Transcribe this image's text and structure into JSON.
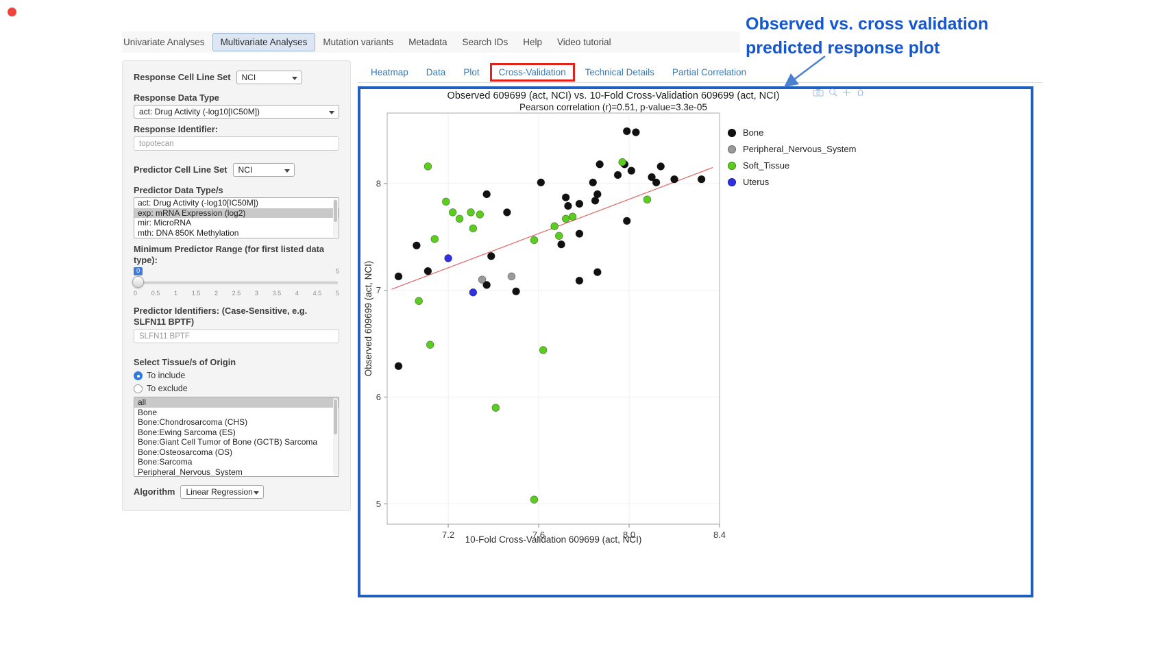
{
  "colors": {
    "annotation_blue": "#1557ce",
    "box_border_blue": "#1e5fc1",
    "highlight_red": "#e2231a",
    "tab_link_blue": "#337ab7",
    "window_close_red": "#f0433d"
  },
  "nav": {
    "tabs": [
      {
        "label": "Univariate Analyses",
        "active": false
      },
      {
        "label": "Multivariate Analyses",
        "active": true
      },
      {
        "label": "Mutation variants",
        "active": false
      },
      {
        "label": "Metadata",
        "active": false
      },
      {
        "label": "Search IDs",
        "active": false
      },
      {
        "label": "Help",
        "active": false
      },
      {
        "label": "Video tutorial",
        "active": false
      }
    ]
  },
  "sidebar": {
    "response_cell_line_set": {
      "label": "Response Cell Line Set",
      "value": "NCI"
    },
    "response_data_type": {
      "label": "Response Data Type",
      "value": "act: Drug Activity (-log10[IC50M])"
    },
    "response_identifier": {
      "label": "Response Identifier:",
      "value": "topotecan"
    },
    "predictor_cell_line_set": {
      "label": "Predictor Cell Line Set",
      "value": "NCI"
    },
    "predictor_data_types": {
      "label": "Predictor Data Type/s",
      "options": [
        "act: Drug Activity (-log10[IC50M])",
        "exp: mRNA Expression (log2)",
        "mir: MicroRNA",
        "mth: DNA 850K Methylation"
      ],
      "selected": "exp: mRNA Expression (log2)"
    },
    "min_predictor_range": {
      "label": "Minimum Predictor Range (for first listed data type):",
      "value": "0",
      "max_label": "5",
      "ticks": [
        "0",
        "0.5",
        "1",
        "1.5",
        "2",
        "2.5",
        "3",
        "3.5",
        "4",
        "4.5",
        "5"
      ]
    },
    "predictor_identifiers": {
      "label": "Predictor Identifiers: (Case-Sensitive, e.g. SLFN11 BPTF)",
      "value": "SLFN11 BPTF"
    },
    "tissue_origin": {
      "label": "Select Tissue/s of Origin",
      "radios": [
        {
          "label": "To include",
          "checked": true
        },
        {
          "label": "To exclude",
          "checked": false
        }
      ],
      "options": [
        "all",
        "Bone",
        "Bone:Chondrosarcoma (CHS)",
        "Bone:Ewing Sarcoma (ES)",
        "Bone:Giant Cell Tumor of Bone (GCTB) Sarcoma",
        "Bone:Osteosarcoma (OS)",
        "Bone:Sarcoma",
        "Peripheral_Nervous_System"
      ],
      "selected": "all"
    },
    "algorithm": {
      "label": "Algorithm",
      "value": "Linear Regression"
    }
  },
  "main": {
    "tabs": [
      "Heatmap",
      "Data",
      "Plot",
      "Cross-Validation",
      "Technical Details",
      "Partial Correlation"
    ],
    "active_tab": "Cross-Validation"
  },
  "annotation": {
    "line1": "Observed vs. cross validation",
    "line2": "predicted response plot"
  },
  "chart_data": {
    "type": "scatter",
    "title": "Observed 609699 (act, NCI) vs. 10-Fold Cross-Validation 609699 (act, NCI)",
    "subtitle": "Pearson correlation (r)=0.51, p-value=3.3e-05",
    "xlabel": "10-Fold Cross-Validation 609699 (act, NCI)",
    "ylabel": "Observed 609699 (act, NCI)",
    "xlim": [
      6.93,
      8.4
    ],
    "ylim": [
      4.81,
      8.66
    ],
    "xticks": [
      7.2,
      7.6,
      8.0,
      8.4
    ],
    "xtick_labels": [
      "7.2",
      "7.6",
      "8.0",
      "8.4"
    ],
    "yticks": [
      5,
      6,
      7,
      8
    ],
    "ytick_labels": [
      "5",
      "6",
      "7",
      "8"
    ],
    "grid": true,
    "legend_position": "right",
    "series": [
      {
        "name": "Bone",
        "color": "#111111",
        "points": [
          [
            6.98,
            6.29
          ],
          [
            6.98,
            7.13
          ],
          [
            7.06,
            7.42
          ],
          [
            7.11,
            7.18
          ],
          [
            7.37,
            7.9
          ],
          [
            7.39,
            7.32
          ],
          [
            7.46,
            7.73
          ],
          [
            7.37,
            7.05
          ],
          [
            7.5,
            6.99
          ],
          [
            7.61,
            8.01
          ],
          [
            7.72,
            7.87
          ],
          [
            7.73,
            7.79
          ],
          [
            7.7,
            7.43
          ],
          [
            7.78,
            7.53
          ],
          [
            7.78,
            7.81
          ],
          [
            7.78,
            7.09
          ],
          [
            7.84,
            8.01
          ],
          [
            7.85,
            7.84
          ],
          [
            7.86,
            7.9
          ],
          [
            7.87,
            8.18
          ],
          [
            7.86,
            7.17
          ],
          [
            7.95,
            8.08
          ],
          [
            7.99,
            8.49
          ],
          [
            8.03,
            8.48
          ],
          [
            7.98,
            8.18
          ],
          [
            8.01,
            8.12
          ],
          [
            7.99,
            7.65
          ],
          [
            8.1,
            8.06
          ],
          [
            8.12,
            8.01
          ],
          [
            8.14,
            8.16
          ],
          [
            8.2,
            8.04
          ],
          [
            8.32,
            8.04
          ]
        ]
      },
      {
        "name": "Peripheral_Nervous_System",
        "color": "#9a9a9a",
        "points": [
          [
            7.35,
            7.1
          ],
          [
            7.48,
            7.13
          ]
        ]
      },
      {
        "name": "Soft_Tissue",
        "color": "#5bcd1f",
        "points": [
          [
            7.11,
            8.16
          ],
          [
            7.19,
            7.83
          ],
          [
            7.22,
            7.73
          ],
          [
            7.25,
            7.67
          ],
          [
            7.3,
            7.73
          ],
          [
            7.34,
            7.71
          ],
          [
            7.31,
            7.58
          ],
          [
            7.14,
            7.48
          ],
          [
            7.07,
            6.9
          ],
          [
            7.12,
            6.49
          ],
          [
            7.41,
            5.9
          ],
          [
            7.58,
            5.04
          ],
          [
            7.62,
            6.44
          ],
          [
            7.58,
            7.47
          ],
          [
            7.67,
            7.6
          ],
          [
            7.69,
            7.51
          ],
          [
            7.72,
            7.67
          ],
          [
            7.75,
            7.69
          ],
          [
            8.08,
            7.85
          ],
          [
            7.97,
            8.2
          ]
        ]
      },
      {
        "name": "Uterus",
        "color": "#3030e0",
        "points": [
          [
            7.2,
            7.3
          ],
          [
            7.31,
            6.98
          ]
        ]
      }
    ],
    "trendline": {
      "color": "#e06e6e",
      "x1": 6.95,
      "y1": 7.01,
      "x2": 8.37,
      "y2": 8.15
    }
  }
}
